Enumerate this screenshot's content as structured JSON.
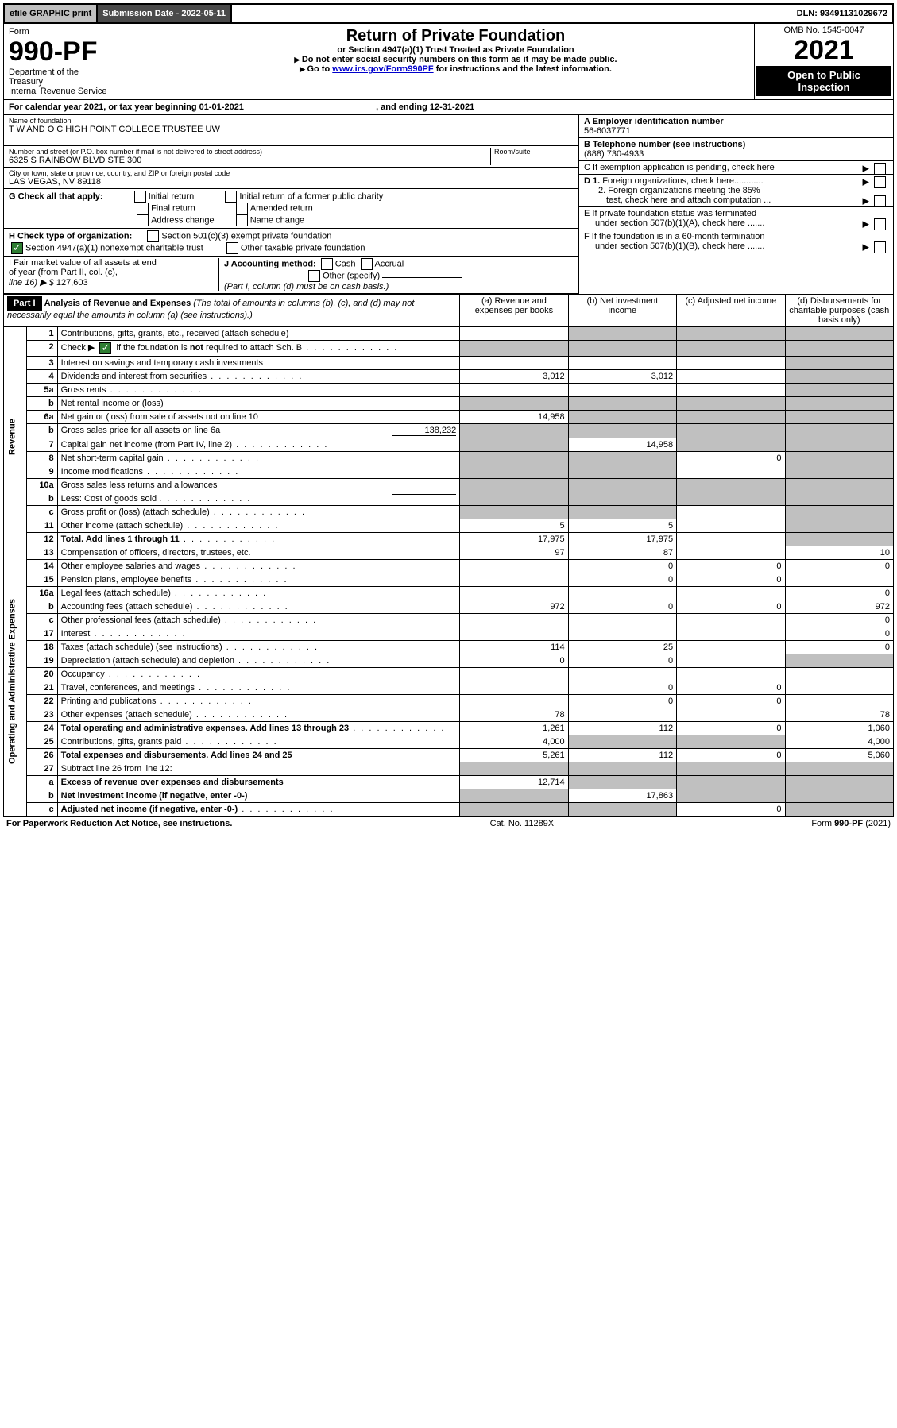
{
  "topbar": {
    "efile": "efile GRAPHIC print",
    "submission_label": "Submission Date - 2022-05-11",
    "dln": "DLN: 93491131029672"
  },
  "header": {
    "form_word": "Form",
    "form_no": "990-PF",
    "dept1": "Department of the",
    "dept2": "Treasury",
    "dept3": "Internal Revenue Service",
    "title": "Return of Private Foundation",
    "subtitle": "or Section 4947(a)(1) Trust Treated as Private Foundation",
    "note1": "Do not enter social security numbers on this form as it may be made public.",
    "note2_pre": "Go to ",
    "note2_link": "www.irs.gov/Form990PF",
    "note2_post": " for instructions and the latest information.",
    "omb": "OMB No. 1545-0047",
    "year": "2021",
    "inspect1": "Open to Public",
    "inspect2": "Inspection"
  },
  "calyear": {
    "text_pre": "For calendar year 2021, or tax year beginning ",
    "begin": "01-01-2021",
    "mid": " , and ending ",
    "end": "12-31-2021"
  },
  "foundation": {
    "name_label": "Name of foundation",
    "name": "T W AND O C HIGH POINT COLLEGE TRUSTEE UW",
    "addr_label": "Number and street (or P.O. box number if mail is not delivered to street address)",
    "addr": "6325 S RAINBOW BLVD STE 300",
    "room_label": "Room/suite",
    "city_label": "City or town, state or province, country, and ZIP or foreign postal code",
    "city": "LAS VEGAS, NV  89118"
  },
  "rightinfo": {
    "a_label": "A Employer identification number",
    "a_val": "56-6037771",
    "b_label": "B Telephone number (see instructions)",
    "b_val": "(888) 730-4933",
    "c_label": "C If exemption application is pending, check here",
    "d1": "D 1. Foreign organizations, check here............",
    "d2a": "2. Foreign organizations meeting the 85%",
    "d2b": "test, check here and attach computation ...",
    "e1": "E  If private foundation status was terminated",
    "e2": "under section 507(b)(1)(A), check here .......",
    "f1": "F  If the foundation is in a 60-month termination",
    "f2": "under section 507(b)(1)(B), check here .......",
    "g_label": "G Check all that apply:",
    "g_opts": [
      "Initial return",
      "Initial return of a former public charity",
      "Final return",
      "Amended return",
      "Address change",
      "Name change"
    ],
    "h_label": "H Check type of organization:",
    "h1": "Section 501(c)(3) exempt private foundation",
    "h2": "Section 4947(a)(1) nonexempt charitable trust",
    "h3": "Other taxable private foundation",
    "i1": "I Fair market value of all assets at end",
    "i2": "of year (from Part II, col. (c),",
    "i3_pre": "line 16) ▶ $ ",
    "i3_val": "127,603",
    "j_label": "J Accounting method:",
    "j_cash": "Cash",
    "j_accrual": "Accrual",
    "j_other": "Other (specify)",
    "j_note": "(Part I, column (d) must be on cash basis.)"
  },
  "part1": {
    "label": "Part I",
    "title": "Analysis of Revenue and Expenses",
    "title_note": " (The total of amounts in columns (b), (c), and (d) may not necessarily equal the amounts in column (a) (see instructions).)",
    "col_a": "(a)   Revenue and expenses per books",
    "col_b": "(b)   Net investment income",
    "col_c": "(c)   Adjusted net income",
    "col_d": "(d)   Disbursements for charitable purposes (cash basis only)"
  },
  "vlabels": {
    "revenue": "Revenue",
    "expenses": "Operating and Administrative Expenses"
  },
  "rows": [
    {
      "n": "1",
      "d": "Contributions, gifts, grants, etc., received (attach schedule)",
      "a": "",
      "b": "g",
      "c": "g",
      "dd": "g"
    },
    {
      "n": "2",
      "d": "Check ▶ ☑ if the foundation is not required to attach Sch. B",
      "a": "g",
      "b": "g",
      "c": "g",
      "dd": "g",
      "dots": true
    },
    {
      "n": "3",
      "d": "Interest on savings and temporary cash investments",
      "a": "",
      "b": "",
      "c": "",
      "dd": "g"
    },
    {
      "n": "4",
      "d": "Dividends and interest from securities",
      "a": "3,012",
      "b": "3,012",
      "c": "",
      "dd": "g",
      "dots": true
    },
    {
      "n": "5a",
      "d": "Gross rents",
      "a": "",
      "b": "",
      "c": "",
      "dd": "g",
      "dots": true
    },
    {
      "n": "b",
      "d": "Net rental income or (loss)",
      "a": "g",
      "b": "g",
      "c": "g",
      "dd": "g",
      "sub": true
    },
    {
      "n": "6a",
      "d": "Net gain or (loss) from sale of assets not on line 10",
      "a": "14,958",
      "b": "g",
      "c": "g",
      "dd": "g"
    },
    {
      "n": "b",
      "d": "Gross sales price for all assets on line 6a",
      "a": "g",
      "b": "g",
      "c": "g",
      "dd": "g",
      "sub": true,
      "subval": "138,232"
    },
    {
      "n": "7",
      "d": "Capital gain net income (from Part IV, line 2)",
      "a": "g",
      "b": "14,958",
      "c": "g",
      "dd": "g",
      "dots": true
    },
    {
      "n": "8",
      "d": "Net short-term capital gain",
      "a": "g",
      "b": "g",
      "c": "0",
      "dd": "g",
      "dots": true
    },
    {
      "n": "9",
      "d": "Income modifications",
      "a": "g",
      "b": "g",
      "c": "",
      "dd": "g",
      "dots": true
    },
    {
      "n": "10a",
      "d": "Gross sales less returns and allowances",
      "a": "g",
      "b": "g",
      "c": "g",
      "dd": "g",
      "sub": true
    },
    {
      "n": "b",
      "d": "Less: Cost of goods sold",
      "a": "g",
      "b": "g",
      "c": "g",
      "dd": "g",
      "sub": true,
      "dots": true
    },
    {
      "n": "c",
      "d": "Gross profit or (loss) (attach schedule)",
      "a": "g",
      "b": "g",
      "c": "",
      "dd": "g",
      "dots": true
    },
    {
      "n": "11",
      "d": "Other income (attach schedule)",
      "a": "5",
      "b": "5",
      "c": "",
      "dd": "g",
      "dots": true
    },
    {
      "n": "12",
      "d": "Total. Add lines 1 through 11",
      "a": "17,975",
      "b": "17,975",
      "c": "",
      "dd": "g",
      "bold": true,
      "dots": true
    },
    {
      "n": "13",
      "d": "Compensation of officers, directors, trustees, etc.",
      "a": "97",
      "b": "87",
      "c": "",
      "dd": "10"
    },
    {
      "n": "14",
      "d": "Other employee salaries and wages",
      "a": "",
      "b": "0",
      "c": "0",
      "dd": "0",
      "dots": true
    },
    {
      "n": "15",
      "d": "Pension plans, employee benefits",
      "a": "",
      "b": "0",
      "c": "0",
      "dd": "",
      "dots": true
    },
    {
      "n": "16a",
      "d": "Legal fees (attach schedule)",
      "a": "",
      "b": "",
      "c": "",
      "dd": "0",
      "dots": true
    },
    {
      "n": "b",
      "d": "Accounting fees (attach schedule)",
      "a": "972",
      "b": "0",
      "c": "0",
      "dd": "972",
      "dots": true
    },
    {
      "n": "c",
      "d": "Other professional fees (attach schedule)",
      "a": "",
      "b": "",
      "c": "",
      "dd": "0",
      "dots": true
    },
    {
      "n": "17",
      "d": "Interest",
      "a": "",
      "b": "",
      "c": "",
      "dd": "0",
      "dots": true
    },
    {
      "n": "18",
      "d": "Taxes (attach schedule) (see instructions)",
      "a": "114",
      "b": "25",
      "c": "",
      "dd": "0",
      "dots": true
    },
    {
      "n": "19",
      "d": "Depreciation (attach schedule) and depletion",
      "a": "0",
      "b": "0",
      "c": "",
      "dd": "g",
      "dots": true
    },
    {
      "n": "20",
      "d": "Occupancy",
      "a": "",
      "b": "",
      "c": "",
      "dd": "",
      "dots": true
    },
    {
      "n": "21",
      "d": "Travel, conferences, and meetings",
      "a": "",
      "b": "0",
      "c": "0",
      "dd": "",
      "dots": true
    },
    {
      "n": "22",
      "d": "Printing and publications",
      "a": "",
      "b": "0",
      "c": "0",
      "dd": "",
      "dots": true
    },
    {
      "n": "23",
      "d": "Other expenses (attach schedule)",
      "a": "78",
      "b": "",
      "c": "",
      "dd": "78",
      "dots": true
    },
    {
      "n": "24",
      "d": "Total operating and administrative expenses. Add lines 13 through 23",
      "a": "1,261",
      "b": "112",
      "c": "0",
      "dd": "1,060",
      "bold": true,
      "dots": true
    },
    {
      "n": "25",
      "d": "Contributions, gifts, grants paid",
      "a": "4,000",
      "b": "g",
      "c": "g",
      "dd": "4,000",
      "dots": true
    },
    {
      "n": "26",
      "d": "Total expenses and disbursements. Add lines 24 and 25",
      "a": "5,261",
      "b": "112",
      "c": "0",
      "dd": "5,060",
      "bold": true
    },
    {
      "n": "27",
      "d": "Subtract line 26 from line 12:",
      "a": "g",
      "b": "g",
      "c": "g",
      "dd": "g"
    },
    {
      "n": "a",
      "d": "Excess of revenue over expenses and disbursements",
      "a": "12,714",
      "b": "g",
      "c": "g",
      "dd": "g",
      "bold": true
    },
    {
      "n": "b",
      "d": "Net investment income (if negative, enter -0-)",
      "a": "g",
      "b": "17,863",
      "c": "g",
      "dd": "g",
      "bold": true
    },
    {
      "n": "c",
      "d": "Adjusted net income (if negative, enter -0-)",
      "a": "g",
      "b": "g",
      "c": "0",
      "dd": "g",
      "bold": true,
      "dots": true
    }
  ],
  "footer": {
    "left": "For Paperwork Reduction Act Notice, see instructions.",
    "mid": "Cat. No. 11289X",
    "right": "Form 990-PF (2021)"
  }
}
